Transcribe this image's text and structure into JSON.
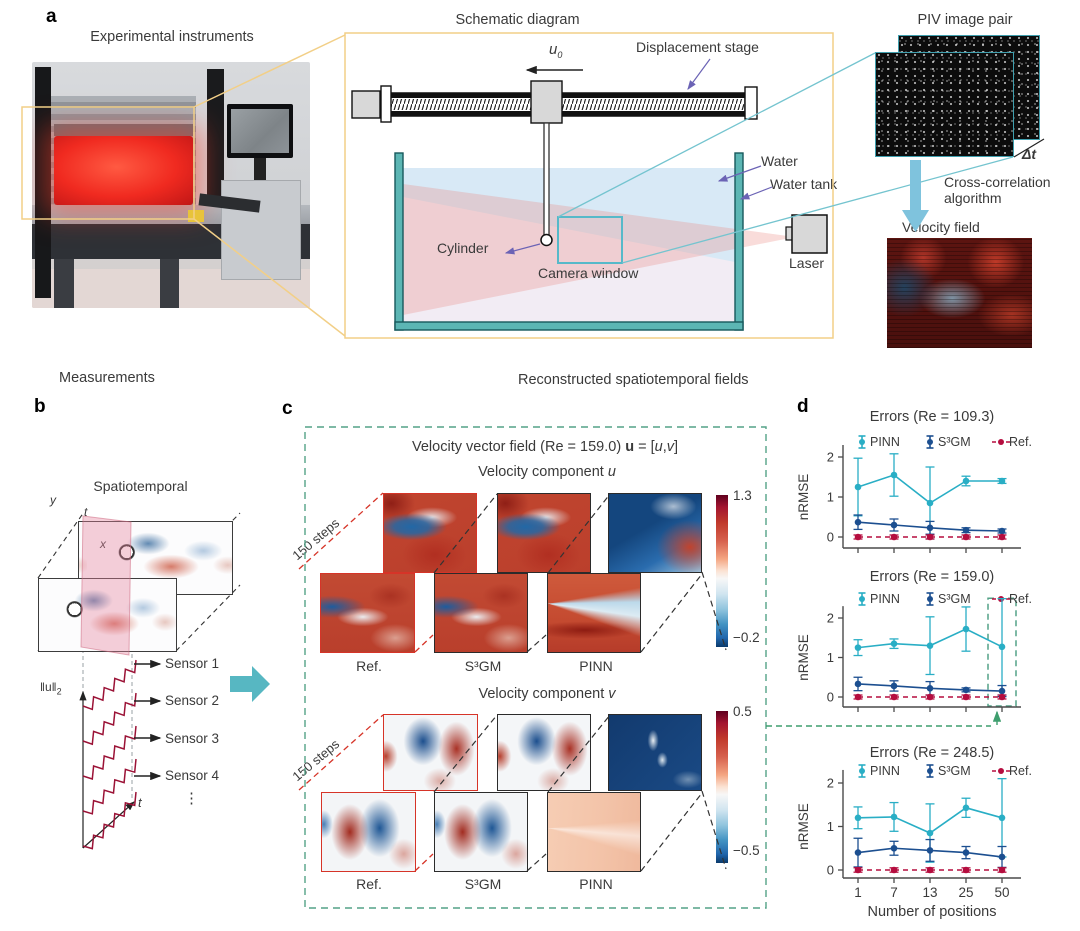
{
  "figure": {
    "panel_a": {
      "label": "a",
      "photo_title": "Experimental instruments",
      "schematic_title": "Schematic diagram",
      "u0_base": "u",
      "u0_sub": "0",
      "displacement_stage": "Displacement stage",
      "water": "Water",
      "water_tank": "Water tank",
      "cylinder": "Cylinder",
      "camera_window": "Camera window",
      "laser": "Laser",
      "piv_title": "PIV image pair",
      "dt": "Δt",
      "algo_line1": "Cross-correlation",
      "algo_line2": "algorithm",
      "velocity_field": "Velocity field"
    },
    "panel_b": {
      "label": "b",
      "header": "Measurements",
      "subtitle": "Spatiotemporal",
      "axis_y": "y",
      "axis_t": "t",
      "axis_x": "x",
      "norm_base": "‖u‖",
      "norm_sub": "2",
      "t_axis": "t",
      "sensors": [
        "Sensor 1",
        "Sensor 2",
        "Sensor 3",
        "Sensor 4"
      ],
      "ellipsis": "⋮"
    },
    "panel_c": {
      "label": "c",
      "header": "Reconstructed spatiotemporal fields",
      "field_title": {
        "p1": "Velocity vector field (Re = 159.0) ",
        "vec": "u",
        "p2": " = [",
        "u": "u",
        "p3": ",",
        "v": "v",
        "p4": "]"
      },
      "groups": [
        {
          "title_prefix": "Velocity component ",
          "title_var": "u",
          "steps_label": "150 steps",
          "methods": [
            "Ref.",
            "S³GM",
            "PINN"
          ],
          "cb_max": "1.3",
          "cb_min": "−0.2"
        },
        {
          "title_prefix": "Velocity component ",
          "title_var": "v",
          "steps_label": "150 steps",
          "methods": [
            "Ref.",
            "S³GM",
            "PINN"
          ],
          "cb_max": "0.5",
          "cb_min": "−0.5"
        }
      ]
    },
    "panel_d": {
      "label": "d"
    }
  },
  "chart_data": [
    {
      "type": "line",
      "title": "Errors (Re = 109.3)",
      "ylabel": "nRMSE",
      "xlabel": "",
      "categories": [
        1,
        7,
        13,
        25,
        50
      ],
      "ylim": [
        0,
        2.5
      ],
      "yticks": [
        0,
        1,
        2
      ],
      "show_x_tick_labels": false,
      "legend_position": "top",
      "series": [
        {
          "name": "PINN",
          "color": "#29aec5",
          "style": "solid",
          "y": [
            1.25,
            1.55,
            0.85,
            1.4,
            1.4
          ],
          "yerr": [
            0.72,
            0.53,
            0.9,
            0.12,
            0.06
          ]
        },
        {
          "name": "S³GM",
          "color": "#1c4f90",
          "style": "solid",
          "y": [
            0.37,
            0.3,
            0.23,
            0.17,
            0.15
          ],
          "yerr": [
            0.18,
            0.15,
            0.16,
            0.06,
            0.05
          ]
        },
        {
          "name": "Ref.",
          "color": "#b50d3f",
          "style": "dashed",
          "y": [
            0,
            0,
            0,
            0,
            0
          ],
          "yerr": [
            0.05,
            0.05,
            0.05,
            0.05,
            0.05
          ]
        }
      ]
    },
    {
      "type": "line",
      "title": "Errors (Re = 159.0)",
      "ylabel": "nRMSE",
      "xlabel": "",
      "categories": [
        1,
        7,
        13,
        25,
        50
      ],
      "ylim": [
        0,
        2.5
      ],
      "yticks": [
        0,
        1,
        2
      ],
      "show_x_tick_labels": false,
      "legend_position": "top",
      "highlight_x_index": 4,
      "series": [
        {
          "name": "PINN",
          "color": "#29aec5",
          "style": "solid",
          "y": [
            1.25,
            1.35,
            1.3,
            1.72,
            1.27
          ],
          "yerr": [
            0.2,
            0.12,
            0.73,
            0.56,
            1.22
          ]
        },
        {
          "name": "S³GM",
          "color": "#1c4f90",
          "style": "solid",
          "y": [
            0.33,
            0.28,
            0.22,
            0.18,
            0.15
          ],
          "yerr": [
            0.17,
            0.13,
            0.17,
            0.05,
            0.14
          ]
        },
        {
          "name": "Ref.",
          "color": "#b50d3f",
          "style": "dashed",
          "y": [
            0,
            0,
            0,
            0,
            0
          ],
          "yerr": [
            0.05,
            0.05,
            0.05,
            0.05,
            0.05
          ]
        }
      ]
    },
    {
      "type": "line",
      "title": "Errors (Re = 248.5)",
      "ylabel": "nRMSE",
      "xlabel": "Number of positions",
      "categories": [
        1,
        7,
        13,
        25,
        50
      ],
      "ylim": [
        0,
        2.5
      ],
      "yticks": [
        0,
        1,
        2
      ],
      "show_x_tick_labels": true,
      "legend_position": "top",
      "series": [
        {
          "name": "PINN",
          "color": "#29aec5",
          "style": "solid",
          "y": [
            1.2,
            1.22,
            0.85,
            1.43,
            1.2
          ],
          "yerr": [
            0.25,
            0.33,
            0.67,
            0.22,
            0.9
          ]
        },
        {
          "name": "S³GM",
          "color": "#1c4f90",
          "style": "solid",
          "y": [
            0.4,
            0.5,
            0.45,
            0.4,
            0.3
          ],
          "yerr": [
            0.33,
            0.16,
            0.25,
            0.14,
            0.24
          ]
        },
        {
          "name": "Ref.",
          "color": "#b50d3f",
          "style": "dashed",
          "y": [
            0,
            0,
            0,
            0,
            0
          ],
          "yerr": [
            0.05,
            0.05,
            0.05,
            0.05,
            0.05
          ]
        }
      ]
    }
  ],
  "colors": {
    "pinn": "#29aec5",
    "s3gm": "#1c4f90",
    "ref": "#b50d3f",
    "green_accent": "#54a287",
    "yellow_accent": "#f2cf87",
    "teal_accent": "#4aa9b5",
    "purple_accent": "#6b63b5",
    "ref_border": "#d63428"
  }
}
